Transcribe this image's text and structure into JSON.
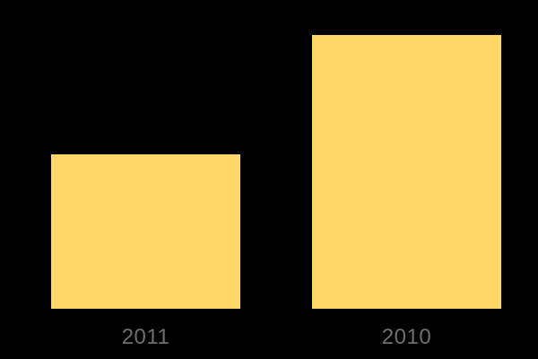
{
  "chart_data": {
    "type": "bar",
    "title": "",
    "xlabel": "",
    "ylabel": "",
    "categories": [
      "2011",
      "2010"
    ],
    "values": [
      56.4,
      100
    ],
    "values_are_relative": true,
    "ylim": [
      0,
      100
    ],
    "grid": false,
    "legend": false,
    "y_axis_visible": false,
    "x_axis_line_visible": false
  },
  "colors": {
    "background": "#000000",
    "bar_fill": "#FFD76B",
    "axis_label_text": "#6F6F6F"
  }
}
